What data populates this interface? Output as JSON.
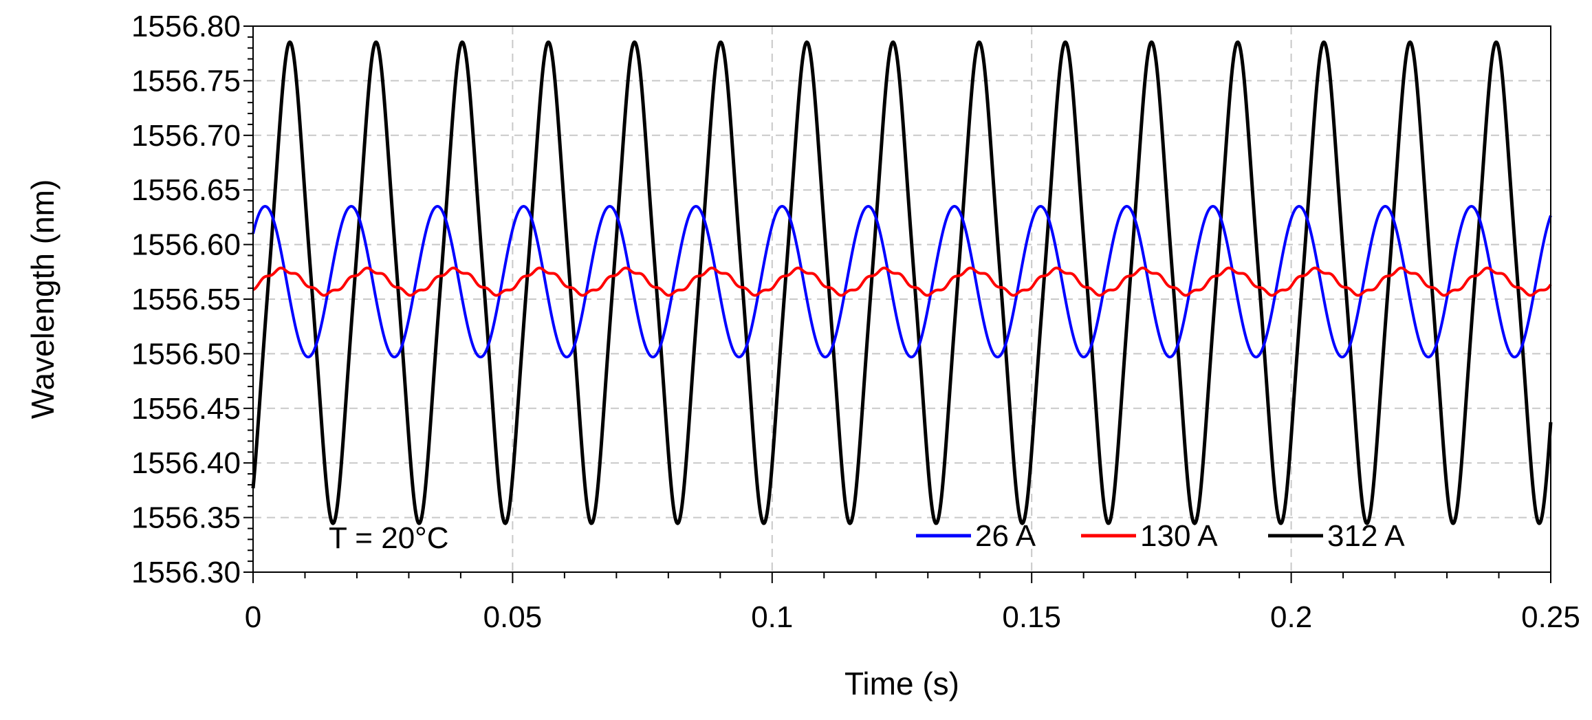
{
  "chart_data": {
    "type": "line",
    "title": "",
    "xlabel": "Time (s)",
    "ylabel": "Wavelength (nm)",
    "xlim": [
      0,
      0.25
    ],
    "ylim": [
      1556.3,
      1556.8
    ],
    "x_ticks": [
      0,
      0.05,
      0.1,
      0.15,
      0.2,
      0.25
    ],
    "x_tick_labels": [
      "0",
      "0.05",
      "0.1",
      "0.15",
      "0.2",
      "0.25"
    ],
    "y_ticks": [
      1556.3,
      1556.35,
      1556.4,
      1556.45,
      1556.5,
      1556.55,
      1556.6,
      1556.65,
      1556.7,
      1556.75,
      1556.8
    ],
    "y_tick_labels": [
      "1556.30",
      "1556.35",
      "1556.40",
      "1556.45",
      "1556.50",
      "1556.55",
      "1556.60",
      "1556.65",
      "1556.70",
      "1556.75",
      "1556.80"
    ],
    "grid": true,
    "legend_position": "bottom-right",
    "annotation": "T = 20°C",
    "series": [
      {
        "name": "26 A",
        "color": "#0000ff",
        "period": 0.0166,
        "center": 1556.566,
        "amplitude": 0.069,
        "peak_value": 1556.635,
        "trough_value": 1556.497,
        "start_value": 1556.61
      },
      {
        "name": "130 A",
        "color": "#ff0000",
        "period": 0.0166,
        "center": 1556.566,
        "amplitude": 0.011,
        "peak_value": 1556.577,
        "trough_value": 1556.555,
        "start_value": 1556.56
      },
      {
        "name": "312 A",
        "color": "#000000",
        "period": 0.0166,
        "center": 1556.565,
        "amplitude": 0.195,
        "peak_value": 1556.76,
        "trough_value": 1556.37,
        "start_value": 1556.39
      }
    ]
  }
}
